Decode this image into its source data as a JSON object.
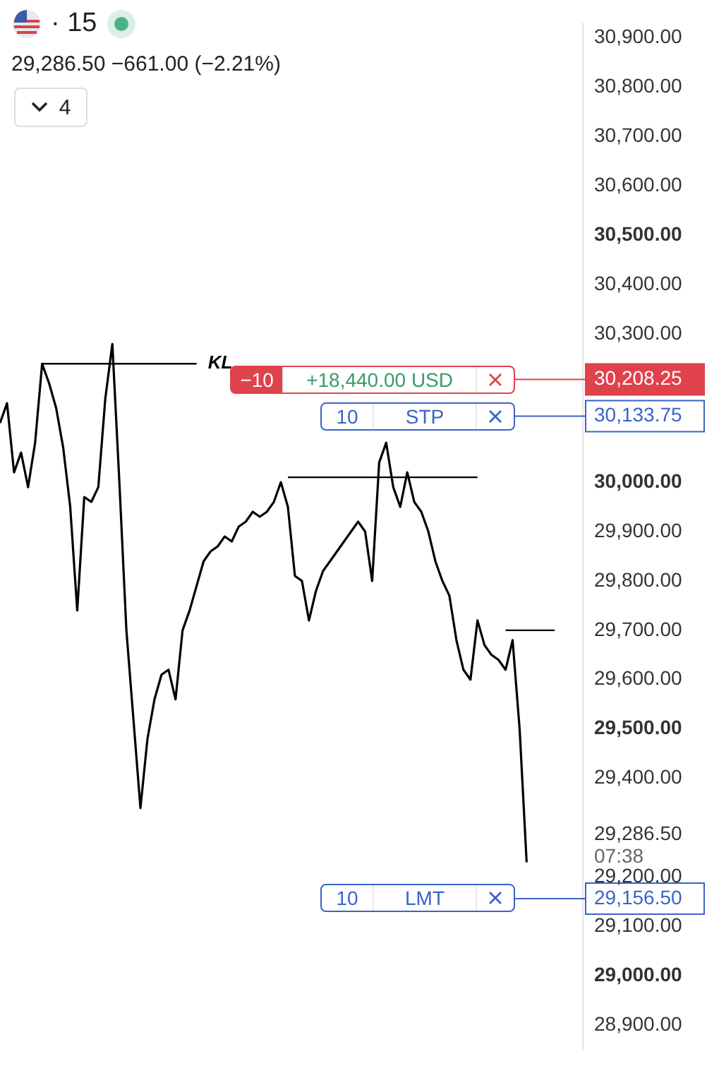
{
  "chart_data": {
    "type": "line",
    "title": "· 15",
    "subtitle": "29,286.50 −661.00 (−2.21%)",
    "categories": [
      null,
      null,
      null,
      null,
      null,
      null,
      null,
      null,
      null,
      null,
      null,
      null,
      null,
      null,
      null,
      null,
      null,
      null,
      null,
      null,
      null,
      null,
      null,
      null,
      null,
      null,
      null,
      null,
      null,
      null,
      null,
      null,
      null,
      null,
      null,
      null,
      null,
      null,
      null,
      null,
      null,
      null,
      null,
      null,
      null,
      null,
      null,
      null,
      null,
      null,
      null,
      null,
      null,
      null,
      null,
      null,
      null,
      null,
      null,
      null,
      null,
      null,
      null,
      null,
      null,
      null,
      null,
      null,
      null,
      null,
      null,
      null,
      null,
      null,
      null,
      null,
      null,
      null,
      null,
      null,
      null,
      null,
      null,
      null
    ],
    "series": [
      {
        "color": "#000000",
        "values": [
          30120,
          30160,
          30020,
          30060,
          29990,
          30080,
          30240,
          30200,
          30150,
          30070,
          29950,
          29740,
          29970,
          29960,
          29990,
          30170,
          30280,
          30000,
          29700,
          29520,
          29340,
          29480,
          29560,
          29610,
          29620,
          29560,
          29700,
          29740,
          29790,
          29840,
          29860,
          29870,
          29890,
          29880,
          29910,
          29920,
          29940,
          29930,
          29940,
          29960,
          30000,
          29950,
          29810,
          29800,
          29720,
          29780,
          29820,
          29840,
          29860,
          29880,
          29900,
          29920,
          29900,
          29800,
          30040,
          30080,
          29990,
          29950,
          30020,
          29960,
          29940,
          29900,
          29840,
          29800,
          29770,
          29680,
          29620,
          29600,
          29720,
          29670,
          29650,
          29640,
          29620,
          29680,
          29500,
          29230,
          null,
          null,
          null,
          null,
          null,
          null,
          null,
          null
        ]
      },
      {
        "name": "KL",
        "type": "line",
        "color": "#000000",
        "values": [
          null,
          null,
          null,
          null,
          null,
          null,
          30240,
          30240,
          30240,
          30240,
          30240,
          30240,
          30240,
          30240,
          30240,
          30240,
          30240,
          30240,
          30240,
          30240,
          30240,
          30240,
          30240,
          30240,
          30240,
          30240,
          30240,
          30240,
          30240,
          null,
          null,
          null,
          null,
          null,
          null,
          null,
          null,
          null,
          null,
          null,
          null,
          null,
          null,
          null,
          null,
          null,
          null,
          null,
          null,
          null,
          null,
          null,
          null,
          null,
          null,
          null,
          null,
          null,
          null,
          null,
          null,
          null,
          null,
          null,
          null,
          null,
          null,
          null,
          null,
          null,
          null,
          null,
          null,
          null,
          null,
          null,
          null,
          null,
          null,
          null,
          null,
          null,
          null,
          null
        ]
      },
      {
        "type": "line",
        "color": "#000000",
        "values": [
          null,
          null,
          null,
          null,
          null,
          null,
          null,
          null,
          null,
          null,
          null,
          null,
          null,
          null,
          null,
          null,
          null,
          null,
          null,
          null,
          null,
          null,
          null,
          null,
          null,
          null,
          null,
          null,
          null,
          null,
          null,
          null,
          null,
          null,
          null,
          null,
          null,
          null,
          null,
          null,
          null,
          30010,
          30010,
          30010,
          30010,
          30010,
          30010,
          30010,
          30010,
          30010,
          30010,
          30010,
          30010,
          30010,
          30010,
          30010,
          30010,
          30010,
          30010,
          30010,
          30010,
          30010,
          30010,
          30010,
          30010,
          30010,
          30010,
          30010,
          30010,
          null,
          null,
          null,
          null,
          null,
          null,
          null,
          null,
          null,
          null,
          null,
          null,
          null,
          null,
          null
        ]
      },
      {
        "type": "line",
        "color": "#000000",
        "values": [
          null,
          null,
          null,
          null,
          null,
          null,
          null,
          null,
          null,
          null,
          null,
          null,
          null,
          null,
          null,
          null,
          null,
          null,
          null,
          null,
          null,
          null,
          null,
          null,
          null,
          null,
          null,
          null,
          null,
          null,
          null,
          null,
          null,
          null,
          null,
          null,
          null,
          null,
          null,
          null,
          null,
          null,
          null,
          null,
          null,
          null,
          null,
          null,
          null,
          null,
          null,
          null,
          null,
          null,
          null,
          null,
          null,
          null,
          null,
          null,
          null,
          null,
          null,
          null,
          null,
          null,
          null,
          null,
          null,
          null,
          null,
          null,
          29700,
          29700,
          29700,
          29700,
          29700,
          29700,
          29700,
          29700,
          null,
          null,
          null,
          null
        ]
      }
    ],
    "ylim": [
      28850,
      30930
    ],
    "yticks": [
      {
        "value": 28900,
        "label": "28,900.00"
      },
      {
        "value": 29000,
        "label": "29,000.00"
      },
      {
        "value": 29100,
        "label": "29,100.00"
      },
      {
        "value": 29156.5,
        "label": "29,156.50"
      },
      {
        "value": 29200,
        "label": "29,200.00"
      },
      {
        "value": 29286.5,
        "label": "29,286.50"
      },
      {
        "value": 29400,
        "label": "29,400.00"
      },
      {
        "value": 29500,
        "label": "29,500.00"
      },
      {
        "value": 29600,
        "label": "29,600.00"
      },
      {
        "value": 29700,
        "label": "29,700.00"
      },
      {
        "value": 29800,
        "label": "29,800.00"
      },
      {
        "value": 29900,
        "label": "29,900.00"
      },
      {
        "value": 30000,
        "label": "30,000.00"
      },
      {
        "value": 30133.75,
        "label": "30,133.75"
      },
      {
        "value": 30208.25,
        "label": "30,208.25"
      },
      {
        "value": 30300,
        "label": "30,300.00"
      },
      {
        "value": 30400,
        "label": "30,400.00"
      },
      {
        "value": 30500,
        "label": "30,500.00"
      },
      {
        "value": 30600,
        "label": "30,600.00"
      },
      {
        "value": 30700,
        "label": "30,700.00"
      },
      {
        "value": 30800,
        "label": "30,800.00"
      },
      {
        "value": 30900,
        "label": "30,900.00"
      }
    ],
    "tick_labels": "y",
    "ref_lines": [
      {
        "axis": "y",
        "value": 30208.25,
        "label": "−10 +18,440.00 USD",
        "color": "#e0424b"
      },
      {
        "axis": "y",
        "value": 30133.75,
        "label": "10 STP",
        "color": "#3b63c8"
      },
      {
        "axis": "y",
        "value": 29156.5,
        "label": "10 LMT",
        "color": "#3b63c8"
      }
    ],
    "annotations": [
      "07:38",
      "4"
    ]
  }
}
